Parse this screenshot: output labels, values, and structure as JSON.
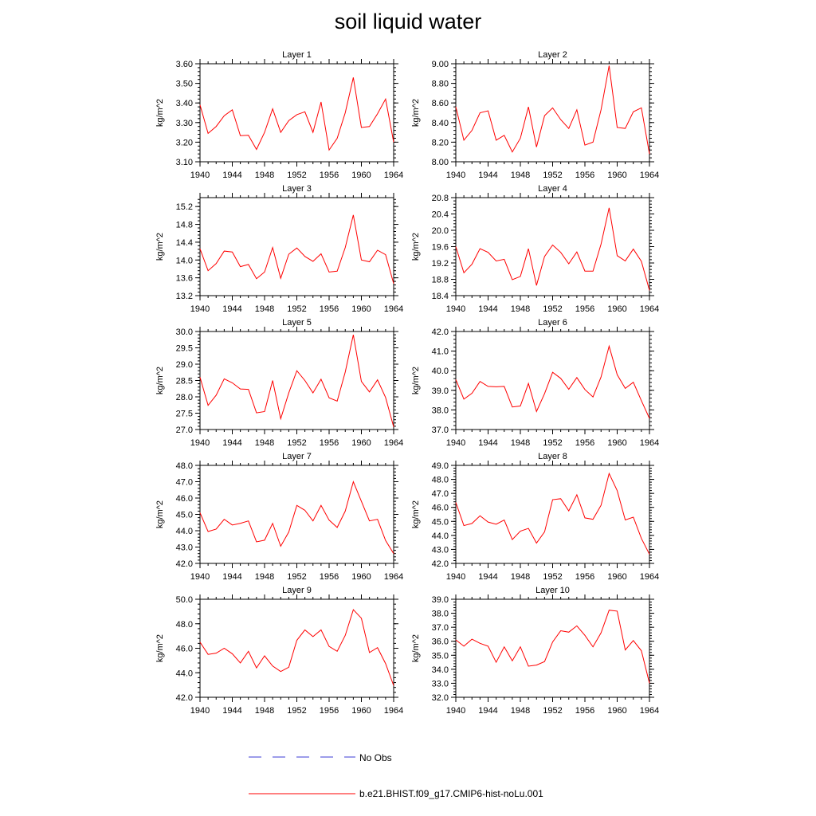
{
  "title": "soil liquid water",
  "legend": {
    "obs_label": "No Obs",
    "model_label": "b.e21.BHIST.f09_g17.CMIP6-hist-noLu.001",
    "obs_color": "#3b3bd6",
    "model_color": "#ff0000"
  },
  "chart_data": [
    {
      "type": "line",
      "title": "Layer 1",
      "xlabel": "",
      "ylabel": "kg/m^2",
      "xlim": [
        1940,
        1964
      ],
      "ylim": [
        3.1,
        3.6
      ],
      "yticks": [
        "3.10",
        "3.20",
        "3.30",
        "3.40",
        "3.50",
        "3.60"
      ],
      "xticks": [
        "1940",
        "1944",
        "1948",
        "1952",
        "1956",
        "1960",
        "1964"
      ],
      "series": [
        {
          "name": "b.e21.BHIST.f09_g17.CMIP6-hist-noLu.001",
          "x": [
            1940,
            1941,
            1942,
            1943,
            1944,
            1945,
            1946,
            1947,
            1948,
            1949,
            1950,
            1951,
            1952,
            1953,
            1954,
            1955,
            1956,
            1957,
            1958,
            1959,
            1960,
            1961,
            1962,
            1963,
            1964
          ],
          "values": [
            3.39,
            3.245,
            3.28,
            3.335,
            3.365,
            3.233,
            3.235,
            3.163,
            3.25,
            3.37,
            3.25,
            3.31,
            3.34,
            3.355,
            3.25,
            3.405,
            3.16,
            3.22,
            3.35,
            3.53,
            3.275,
            3.28,
            3.345,
            3.42,
            3.2
          ]
        }
      ]
    },
    {
      "type": "line",
      "title": "Layer 2",
      "xlabel": "",
      "ylabel": "kg/m^2",
      "xlim": [
        1940,
        1964
      ],
      "ylim": [
        8.0,
        9.0
      ],
      "yticks": [
        "8.00",
        "8.20",
        "8.40",
        "8.60",
        "8.80",
        "9.00"
      ],
      "xticks": [
        "1940",
        "1944",
        "1948",
        "1952",
        "1956",
        "1960",
        "1964"
      ],
      "series": [
        {
          "name": "b.e21.BHIST.f09_g17.CMIP6-hist-noLu.001",
          "x": [
            1940,
            1941,
            1942,
            1943,
            1944,
            1945,
            1946,
            1947,
            1948,
            1949,
            1950,
            1951,
            1952,
            1953,
            1954,
            1955,
            1956,
            1957,
            1958,
            1959,
            1960,
            1961,
            1962,
            1963,
            1964
          ],
          "values": [
            8.56,
            8.22,
            8.32,
            8.5,
            8.52,
            8.22,
            8.27,
            8.1,
            8.24,
            8.56,
            8.15,
            8.47,
            8.55,
            8.43,
            8.34,
            8.53,
            8.17,
            8.2,
            8.53,
            8.98,
            8.35,
            8.34,
            8.51,
            8.55,
            8.08
          ]
        }
      ]
    },
    {
      "type": "line",
      "title": "Layer 3",
      "xlabel": "",
      "ylabel": "kg/m^2",
      "xlim": [
        1940,
        1964
      ],
      "ylim": [
        13.2,
        15.4
      ],
      "yticks": [
        "13.2",
        "13.6",
        "14.0",
        "14.4",
        "14.8",
        "15.2"
      ],
      "xticks": [
        "1940",
        "1944",
        "1948",
        "1952",
        "1956",
        "1960",
        "1964"
      ],
      "series": [
        {
          "name": "b.e21.BHIST.f09_g17.CMIP6-hist-noLu.001",
          "x": [
            1940,
            1941,
            1942,
            1943,
            1944,
            1945,
            1946,
            1947,
            1948,
            1949,
            1950,
            1951,
            1952,
            1953,
            1954,
            1955,
            1956,
            1957,
            1958,
            1959,
            1960,
            1961,
            1962,
            1963,
            1964
          ],
          "values": [
            14.25,
            13.76,
            13.92,
            14.2,
            14.18,
            13.85,
            13.9,
            13.58,
            13.73,
            14.28,
            13.59,
            14.13,
            14.27,
            14.08,
            13.97,
            14.14,
            13.73,
            13.75,
            14.28,
            15.01,
            14.0,
            13.96,
            14.22,
            14.12,
            13.47
          ]
        }
      ]
    },
    {
      "type": "line",
      "title": "Layer 4",
      "xlabel": "",
      "ylabel": "kg/m^2",
      "xlim": [
        1940,
        1964
      ],
      "ylim": [
        18.4,
        20.8
      ],
      "yticks": [
        "18.4",
        "18.8",
        "19.2",
        "19.6",
        "20.0",
        "20.4",
        "20.8"
      ],
      "xticks": [
        "1940",
        "1944",
        "1948",
        "1952",
        "1956",
        "1960",
        "1964"
      ],
      "series": [
        {
          "name": "b.e21.BHIST.f09_g17.CMIP6-hist-noLu.001",
          "x": [
            1940,
            1941,
            1942,
            1943,
            1944,
            1945,
            1946,
            1947,
            1948,
            1949,
            1950,
            1951,
            1952,
            1953,
            1954,
            1955,
            1956,
            1957,
            1958,
            1959,
            1960,
            1961,
            1962,
            1963,
            1964
          ],
          "values": [
            19.6,
            18.96,
            19.17,
            19.55,
            19.46,
            19.25,
            19.29,
            18.79,
            18.87,
            19.55,
            18.65,
            19.36,
            19.64,
            19.46,
            19.18,
            19.47,
            19.0,
            19.0,
            19.66,
            20.55,
            19.38,
            19.25,
            19.54,
            19.24,
            18.53
          ]
        }
      ]
    },
    {
      "type": "line",
      "title": "Layer 5",
      "xlabel": "",
      "ylabel": "kg/m^2",
      "xlim": [
        1940,
        1964
      ],
      "ylim": [
        27.0,
        30.0
      ],
      "yticks": [
        "27.0",
        "27.5",
        "28.0",
        "28.5",
        "29.0",
        "29.5",
        "30.0"
      ],
      "xticks": [
        "1940",
        "1944",
        "1948",
        "1952",
        "1956",
        "1960",
        "1964"
      ],
      "series": [
        {
          "name": "b.e21.BHIST.f09_g17.CMIP6-hist-noLu.001",
          "x": [
            1940,
            1941,
            1942,
            1943,
            1944,
            1945,
            1946,
            1947,
            1948,
            1949,
            1950,
            1951,
            1952,
            1953,
            1954,
            1955,
            1956,
            1957,
            1958,
            1959,
            1960,
            1961,
            1962,
            1963,
            1964
          ],
          "values": [
            28.6,
            27.74,
            28.05,
            28.55,
            28.43,
            28.24,
            28.23,
            27.51,
            27.55,
            28.5,
            27.33,
            28.12,
            28.8,
            28.5,
            28.12,
            28.54,
            27.97,
            27.87,
            28.76,
            29.9,
            28.47,
            28.15,
            28.52,
            27.98,
            27.08
          ]
        }
      ]
    },
    {
      "type": "line",
      "title": "Layer 6",
      "xlabel": "",
      "ylabel": "kg/m^2",
      "xlim": [
        1940,
        1964
      ],
      "ylim": [
        37.0,
        42.0
      ],
      "yticks": [
        "37.0",
        "38.0",
        "39.0",
        "40.0",
        "41.0",
        "42.0"
      ],
      "xticks": [
        "1940",
        "1944",
        "1948",
        "1952",
        "1956",
        "1960",
        "1964"
      ],
      "series": [
        {
          "name": "b.e21.BHIST.f09_g17.CMIP6-hist-noLu.001",
          "x": [
            1940,
            1941,
            1942,
            1943,
            1944,
            1945,
            1946,
            1947,
            1948,
            1949,
            1950,
            1951,
            1952,
            1953,
            1954,
            1955,
            1956,
            1957,
            1958,
            1959,
            1960,
            1961,
            1962,
            1963,
            1964
          ],
          "values": [
            39.55,
            38.55,
            38.85,
            39.45,
            39.2,
            39.18,
            39.2,
            38.15,
            38.2,
            39.35,
            37.92,
            38.83,
            39.92,
            39.61,
            39.05,
            39.65,
            39.04,
            38.66,
            39.68,
            41.25,
            39.8,
            39.1,
            39.41,
            38.47,
            37.57
          ]
        }
      ]
    },
    {
      "type": "line",
      "title": "Layer 7",
      "xlabel": "",
      "ylabel": "kg/m^2",
      "xlim": [
        1940,
        1964
      ],
      "ylim": [
        42.0,
        48.0
      ],
      "yticks": [
        "42.0",
        "43.0",
        "44.0",
        "45.0",
        "46.0",
        "47.0",
        "48.0"
      ],
      "xticks": [
        "1940",
        "1944",
        "1948",
        "1952",
        "1956",
        "1960",
        "1964"
      ],
      "series": [
        {
          "name": "b.e21.BHIST.f09_g17.CMIP6-hist-noLu.001",
          "x": [
            1940,
            1941,
            1942,
            1943,
            1944,
            1945,
            1946,
            1947,
            1948,
            1949,
            1950,
            1951,
            1952,
            1953,
            1954,
            1955,
            1956,
            1957,
            1958,
            1959,
            1960,
            1961,
            1962,
            1963,
            1964
          ],
          "values": [
            45.1,
            43.95,
            44.1,
            44.7,
            44.35,
            44.45,
            44.6,
            43.32,
            43.42,
            44.45,
            43.05,
            43.92,
            45.55,
            45.25,
            44.6,
            45.55,
            44.65,
            44.2,
            45.2,
            47.0,
            45.8,
            44.6,
            44.7,
            43.4,
            42.6
          ]
        }
      ]
    },
    {
      "type": "line",
      "title": "Layer 8",
      "xlabel": "",
      "ylabel": "kg/m^2",
      "xlim": [
        1940,
        1964
      ],
      "ylim": [
        42.0,
        49.0
      ],
      "yticks": [
        "42.0",
        "43.0",
        "44.0",
        "45.0",
        "46.0",
        "47.0",
        "48.0",
        "49.0"
      ],
      "xticks": [
        "1940",
        "1944",
        "1948",
        "1952",
        "1956",
        "1960",
        "1964"
      ],
      "series": [
        {
          "name": "b.e21.BHIST.f09_g17.CMIP6-hist-noLu.001",
          "x": [
            1940,
            1941,
            1942,
            1943,
            1944,
            1945,
            1946,
            1947,
            1948,
            1949,
            1950,
            1951,
            1952,
            1953,
            1954,
            1955,
            1956,
            1957,
            1958,
            1959,
            1960,
            1961,
            1962,
            1963,
            1964
          ],
          "values": [
            46.35,
            44.7,
            44.85,
            45.4,
            44.95,
            44.8,
            45.1,
            43.7,
            44.3,
            44.5,
            43.45,
            44.25,
            46.55,
            46.62,
            45.75,
            46.9,
            45.25,
            45.15,
            46.15,
            48.42,
            47.2,
            45.1,
            45.3,
            43.78,
            42.65
          ]
        }
      ]
    },
    {
      "type": "line",
      "title": "Layer 9",
      "xlabel": "",
      "ylabel": "kg/m^2",
      "xlim": [
        1940,
        1964
      ],
      "ylim": [
        42.0,
        50.0
      ],
      "yticks": [
        "42.0",
        "44.0",
        "46.0",
        "48.0",
        "50.0"
      ],
      "xticks": [
        "1940",
        "1944",
        "1948",
        "1952",
        "1956",
        "1960",
        "1964"
      ],
      "series": [
        {
          "name": "b.e21.BHIST.f09_g17.CMIP6-hist-noLu.001",
          "x": [
            1940,
            1941,
            1942,
            1943,
            1944,
            1945,
            1946,
            1947,
            1948,
            1949,
            1950,
            1951,
            1952,
            1953,
            1954,
            1955,
            1956,
            1957,
            1958,
            1959,
            1960,
            1961,
            1962,
            1963,
            1964
          ],
          "values": [
            46.5,
            45.5,
            45.6,
            46.0,
            45.55,
            44.8,
            45.75,
            44.4,
            45.38,
            44.55,
            44.1,
            44.45,
            46.65,
            47.5,
            46.95,
            47.5,
            46.15,
            45.75,
            47.05,
            49.15,
            48.45,
            45.65,
            46.05,
            44.75,
            42.95
          ]
        }
      ]
    },
    {
      "type": "line",
      "title": "Layer 10",
      "xlabel": "",
      "ylabel": "kg/m^2",
      "xlim": [
        1940,
        1964
      ],
      "ylim": [
        32.0,
        39.0
      ],
      "yticks": [
        "32.0",
        "33.0",
        "34.0",
        "35.0",
        "36.0",
        "37.0",
        "38.0",
        "39.0"
      ],
      "xticks": [
        "1940",
        "1944",
        "1948",
        "1952",
        "1956",
        "1960",
        "1964"
      ],
      "series": [
        {
          "name": "b.e21.BHIST.f09_g17.CMIP6-hist-noLu.001",
          "x": [
            1940,
            1941,
            1942,
            1943,
            1944,
            1945,
            1946,
            1947,
            1948,
            1949,
            1950,
            1951,
            1952,
            1953,
            1954,
            1955,
            1956,
            1957,
            1958,
            1959,
            1960,
            1961,
            1962,
            1963,
            1964
          ],
          "values": [
            36.1,
            35.65,
            36.15,
            35.85,
            35.65,
            34.5,
            35.6,
            34.6,
            35.6,
            34.22,
            34.3,
            34.55,
            35.95,
            36.75,
            36.65,
            37.1,
            36.42,
            35.6,
            36.6,
            38.22,
            38.15,
            35.38,
            36.05,
            35.32,
            33.0
          ]
        }
      ]
    }
  ]
}
